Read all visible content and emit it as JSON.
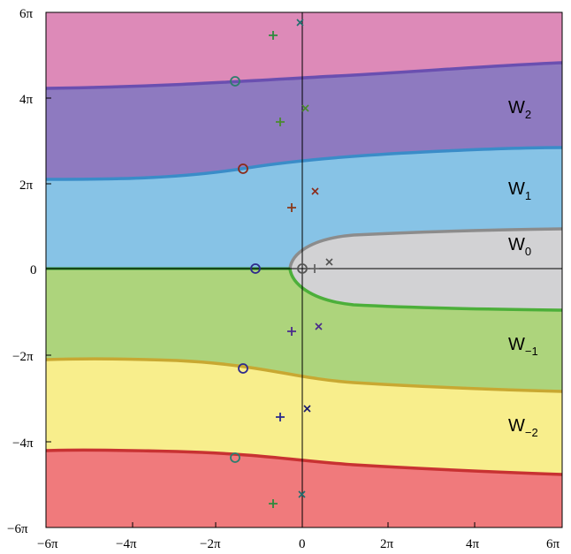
{
  "chart_data": {
    "type": "diagram",
    "x_ticks": [
      "−6π",
      "−4π",
      "−2π",
      "0",
      "2π",
      "4π",
      "6π"
    ],
    "y_ticks": [
      "6π",
      "4π",
      "2π",
      "0",
      "−2π",
      "−4π",
      "−6π"
    ],
    "xlim": [
      "−6π",
      "6π"
    ],
    "ylim": [
      "−6π",
      "6π"
    ],
    "regions": [
      {
        "label": "W",
        "sub": "2",
        "color": "#8e7ac0",
        "boundary_color": "#6a4fb0"
      },
      {
        "label": "W",
        "sub": "1",
        "color": "#87c3e6",
        "boundary_color": "#3a8cc8"
      },
      {
        "label": "W",
        "sub": "0",
        "color": "#d2d2d4",
        "boundary_color": "#8c8c8c"
      },
      {
        "label": "W",
        "sub": "−1",
        "color": "#add47c",
        "boundary_color": "#4caf3a"
      },
      {
        "label": "W",
        "sub": "−2",
        "color": "#f8ee8c",
        "boundary_color": "#c8a832"
      }
    ],
    "outer_colors": {
      "top": "#dd8ab8",
      "bottom": "#f07a7c"
    },
    "markers_note": "circles, plus signs and crosses mark special points in each branch"
  }
}
